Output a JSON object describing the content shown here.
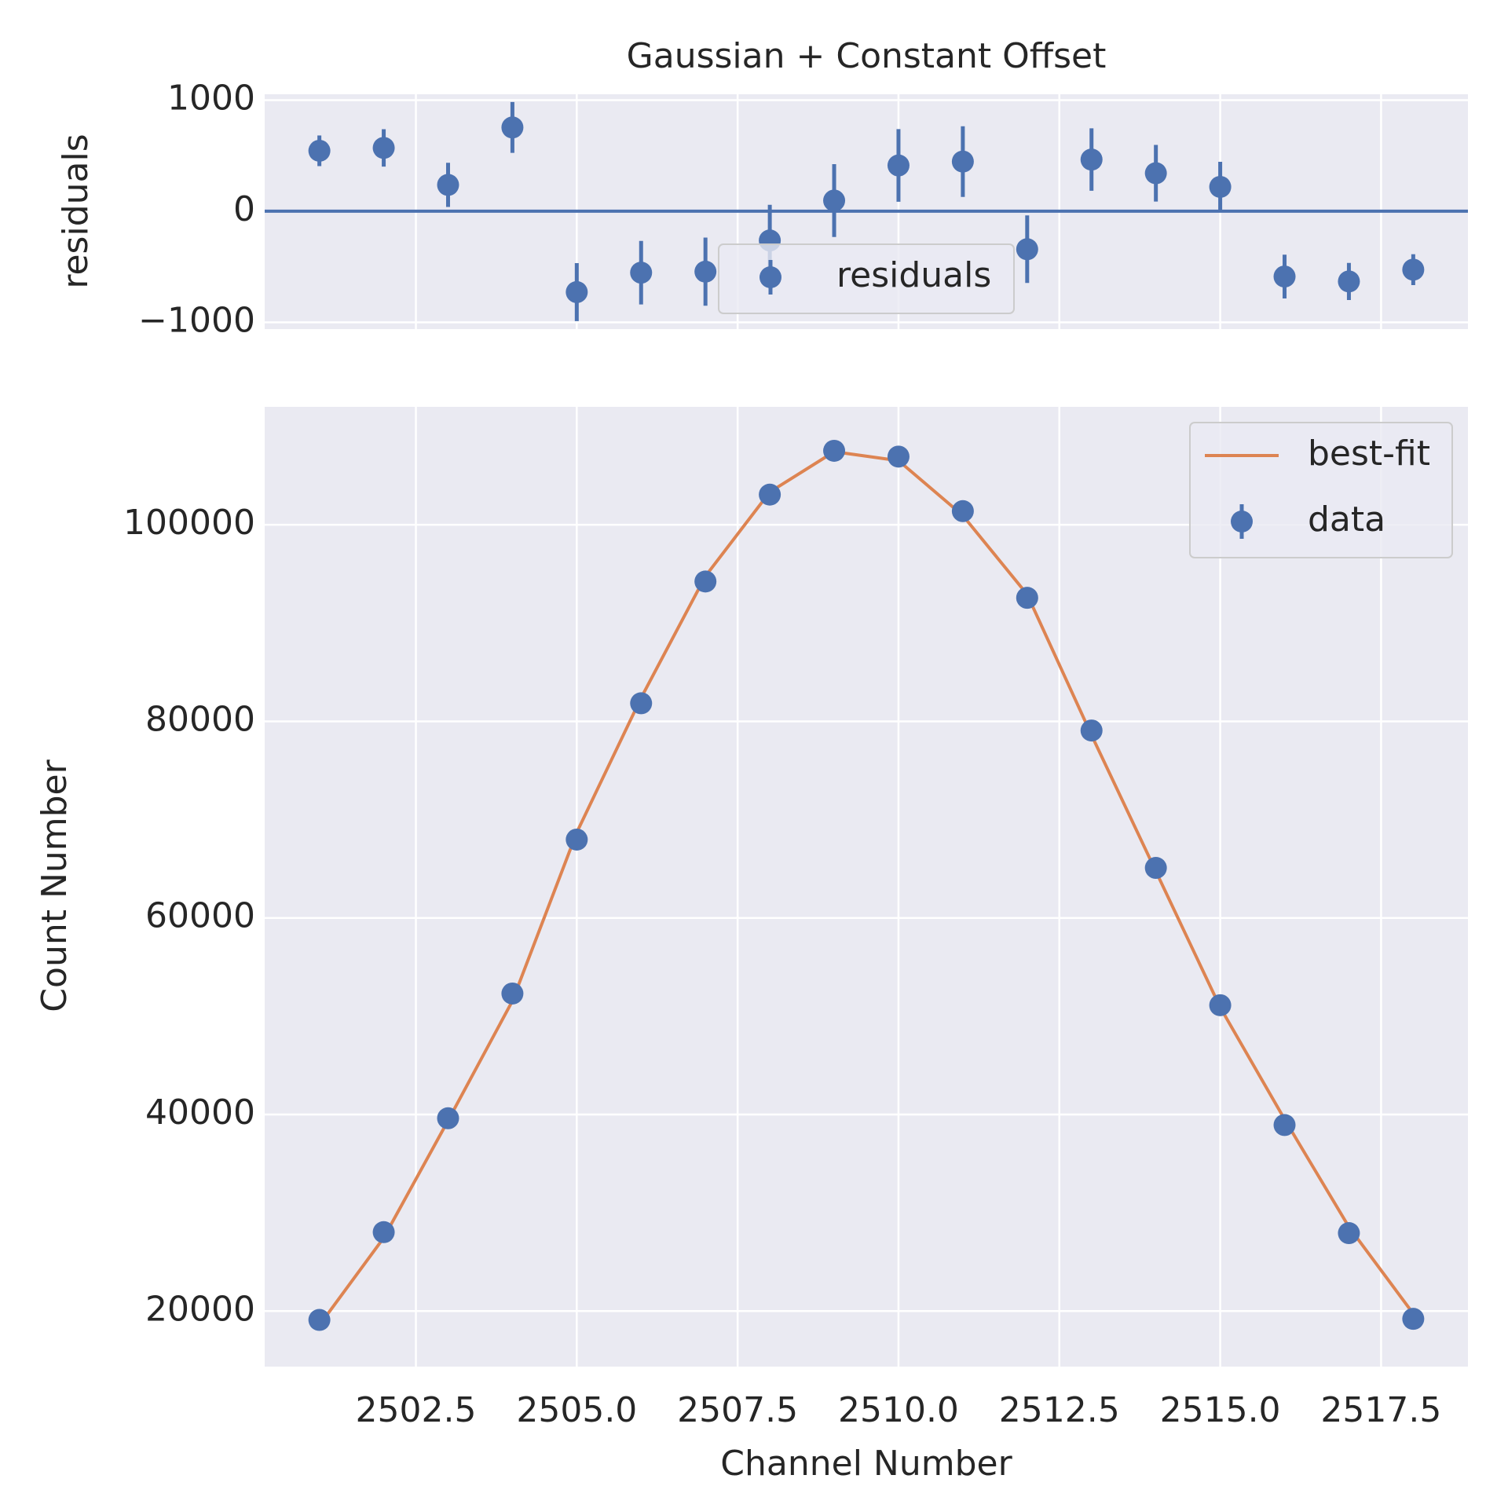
{
  "chart_data": [
    {
      "type": "errorbar",
      "title": "Gaussian + Constant Offset",
      "ylabel": "residuals",
      "x": [
        2501,
        2502,
        2503,
        2504,
        2505,
        2506,
        2507,
        2508,
        2509,
        2510,
        2511,
        2512,
        2513,
        2514,
        2515,
        2516,
        2517,
        2518
      ],
      "series": [
        {
          "name": "residuals",
          "color": "#4c72b0",
          "values": [
            544,
            570,
            237,
            754,
            -728,
            -553,
            -544,
            -263,
            96,
            412,
            447,
            -342,
            465,
            342,
            219,
            -588,
            -632,
            -526
          ],
          "errors": [
            138,
            168,
            199,
            229,
            261,
            286,
            307,
            321,
            328,
            327,
            318,
            304,
            281,
            255,
            226,
            197,
            167,
            139
          ]
        }
      ],
      "reference_line": 0,
      "xlim": [
        2500.15,
        2518.85
      ],
      "ylim": [
        -1061,
        1053
      ],
      "xticks": [
        2502.5,
        2505,
        2507.5,
        2510,
        2512.5,
        2515,
        2517.5
      ],
      "yticks": [
        1000,
        0,
        {
          "value": -1000,
          "label": "−1000"
        }
      ],
      "grid": true,
      "legend": "lower center"
    },
    {
      "type": "line",
      "xlabel": "Channel Number",
      "ylabel": "Count Number",
      "x": [
        2501,
        2502,
        2503,
        2504,
        2505,
        2506,
        2507,
        2508,
        2509,
        2510,
        2511,
        2512,
        2513,
        2514,
        2515,
        2516,
        2517,
        2518
      ],
      "series": [
        {
          "name": "best-fit",
          "color": "#dd8452",
          "values": [
            18556,
            27460,
            39383,
            51556,
            68698,
            82393,
            94774,
            103333,
            107434,
            106528,
            100943,
            92912,
            78605,
            64748,
            50901,
            39518,
            28562,
            19736
          ]
        },
        {
          "name": "data",
          "color": "#4c72b0",
          "values": [
            19100,
            28030,
            39620,
            52310,
            67970,
            81840,
            94230,
            103070,
            107530,
            106940,
            101390,
            92570,
            79070,
            65090,
            51120,
            38930,
            27930,
            19210
          ],
          "errors": [
            138,
            168,
            199,
            229,
            261,
            286,
            307,
            321,
            328,
            327,
            318,
            304,
            281,
            255,
            226,
            197,
            167,
            139
          ]
        }
      ],
      "xlim": [
        2500.15,
        2518.85
      ],
      "ylim": [
        14350,
        112000
      ],
      "xticks": [
        2502.5,
        {
          "value": 2505,
          "label": "2505.0"
        },
        2507.5,
        {
          "value": 2510,
          "label": "2510.0"
        },
        2512.5,
        {
          "value": 2515,
          "label": "2515.0"
        },
        2517.5
      ],
      "yticks": [
        20000,
        40000,
        60000,
        80000,
        100000
      ],
      "grid": true,
      "legend": "upper right"
    }
  ]
}
